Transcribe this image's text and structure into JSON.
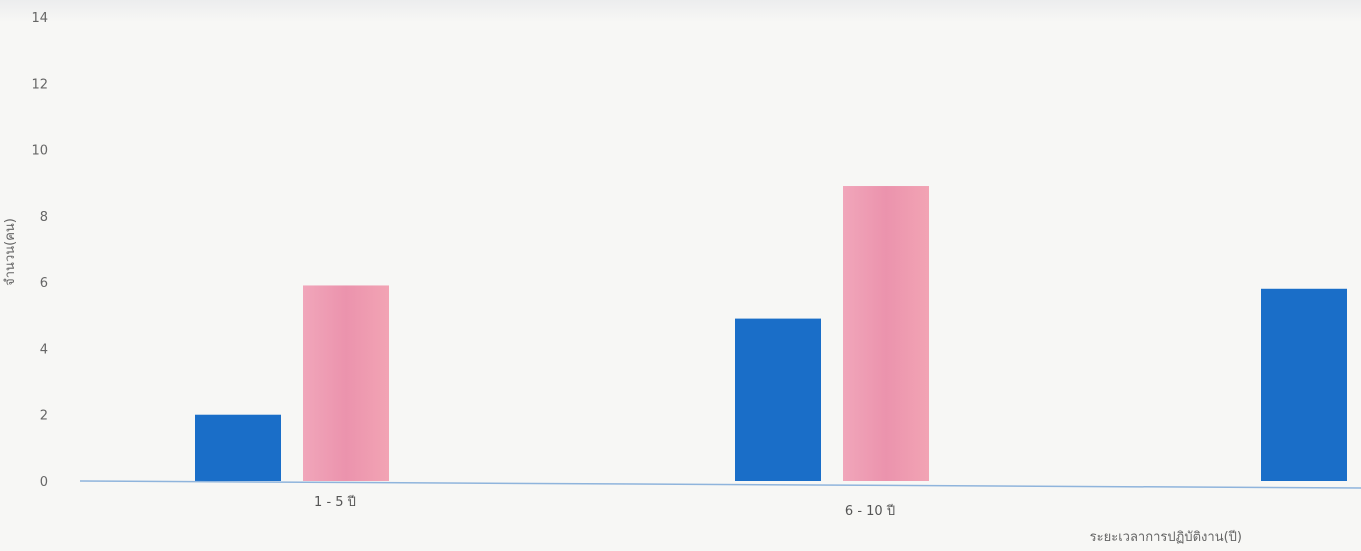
{
  "chart_data": {
    "type": "bar",
    "title": "",
    "xlabel": "ระยะเวลาการปฏิบัติงาน(ปี)",
    "ylabel": "จำนวน(คน)",
    "ylim": [
      0,
      14
    ],
    "yticks": [
      0,
      2,
      4,
      6,
      8,
      10,
      12,
      14
    ],
    "grid": false,
    "categories": [
      "1 - 5 ปี",
      "6 - 10 ปี",
      ""
    ],
    "series": [
      {
        "color": "#1a6ec8",
        "values": [
          2.0,
          4.9,
          5.8
        ]
      },
      {
        "color": "#f09aae",
        "values": [
          5.9,
          8.9,
          null
        ]
      }
    ],
    "axis_color": "#8fb4dc"
  }
}
